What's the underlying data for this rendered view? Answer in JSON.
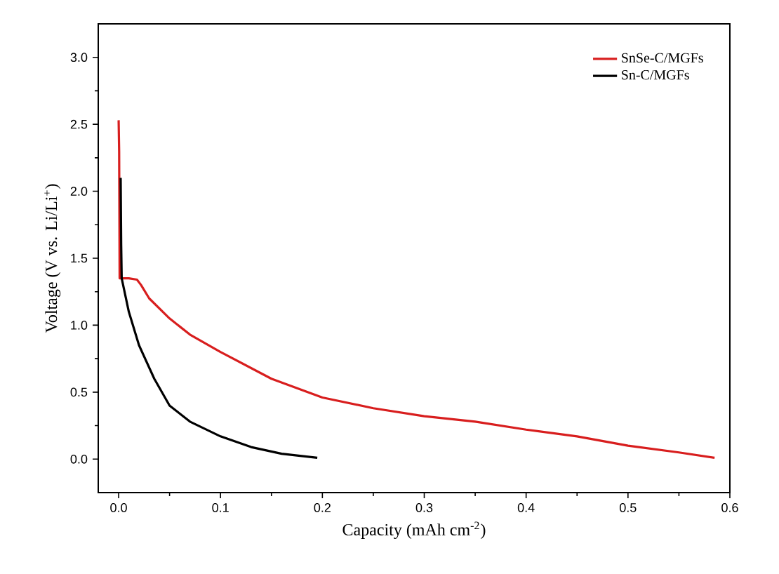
{
  "chart_data": {
    "type": "line",
    "xlabel": "Capacity (mAh cm$^{-2}$)",
    "ylabel": "Voltage (V vs. Li/Li$^{+}$)",
    "xlim": [
      -0.02,
      0.6
    ],
    "ylim": [
      -0.25,
      3.25
    ],
    "xticks": [
      {
        "value": 0,
        "label": "0.0"
      },
      0.1,
      0.2,
      0.3,
      0.4,
      0.5,
      0.6
    ],
    "yticks": [
      {
        "value": 0,
        "label": "0.0"
      },
      0.5,
      {
        "value": 1,
        "label": "1.0"
      },
      1.5,
      {
        "value": 2,
        "label": "2.0"
      },
      2.5,
      {
        "value": 3,
        "label": "3.0"
      }
    ],
    "legend": "top right",
    "grid": false,
    "marker": "none",
    "line_style": "solid",
    "series": [
      {
        "name": "SnSe-C/MGFs",
        "color": "#d81e1e",
        "x": [
          0,
          0.0005,
          0.001,
          0.01,
          0.018,
          0.022,
          0.03,
          0.05,
          0.07,
          0.1,
          0.15,
          0.2,
          0.25,
          0.3,
          0.35,
          0.4,
          0.45,
          0.5,
          0.55,
          0.585
        ],
        "values": [
          2.53,
          2.3,
          1.35,
          1.35,
          1.34,
          1.3,
          1.2,
          1.05,
          0.93,
          0.8,
          0.6,
          0.46,
          0.38,
          0.32,
          0.28,
          0.22,
          0.17,
          0.1,
          0.05,
          0.01
        ]
      },
      {
        "name": "Sn-C/MGFs",
        "color": "#000000",
        "x": [
          0.002,
          0.0025,
          0.003,
          0.01,
          0.02,
          0.035,
          0.05,
          0.07,
          0.1,
          0.13,
          0.16,
          0.195
        ],
        "values": [
          2.1,
          1.6,
          1.35,
          1.1,
          0.85,
          0.6,
          0.4,
          0.28,
          0.17,
          0.09,
          0.04,
          0.01
        ]
      }
    ]
  }
}
